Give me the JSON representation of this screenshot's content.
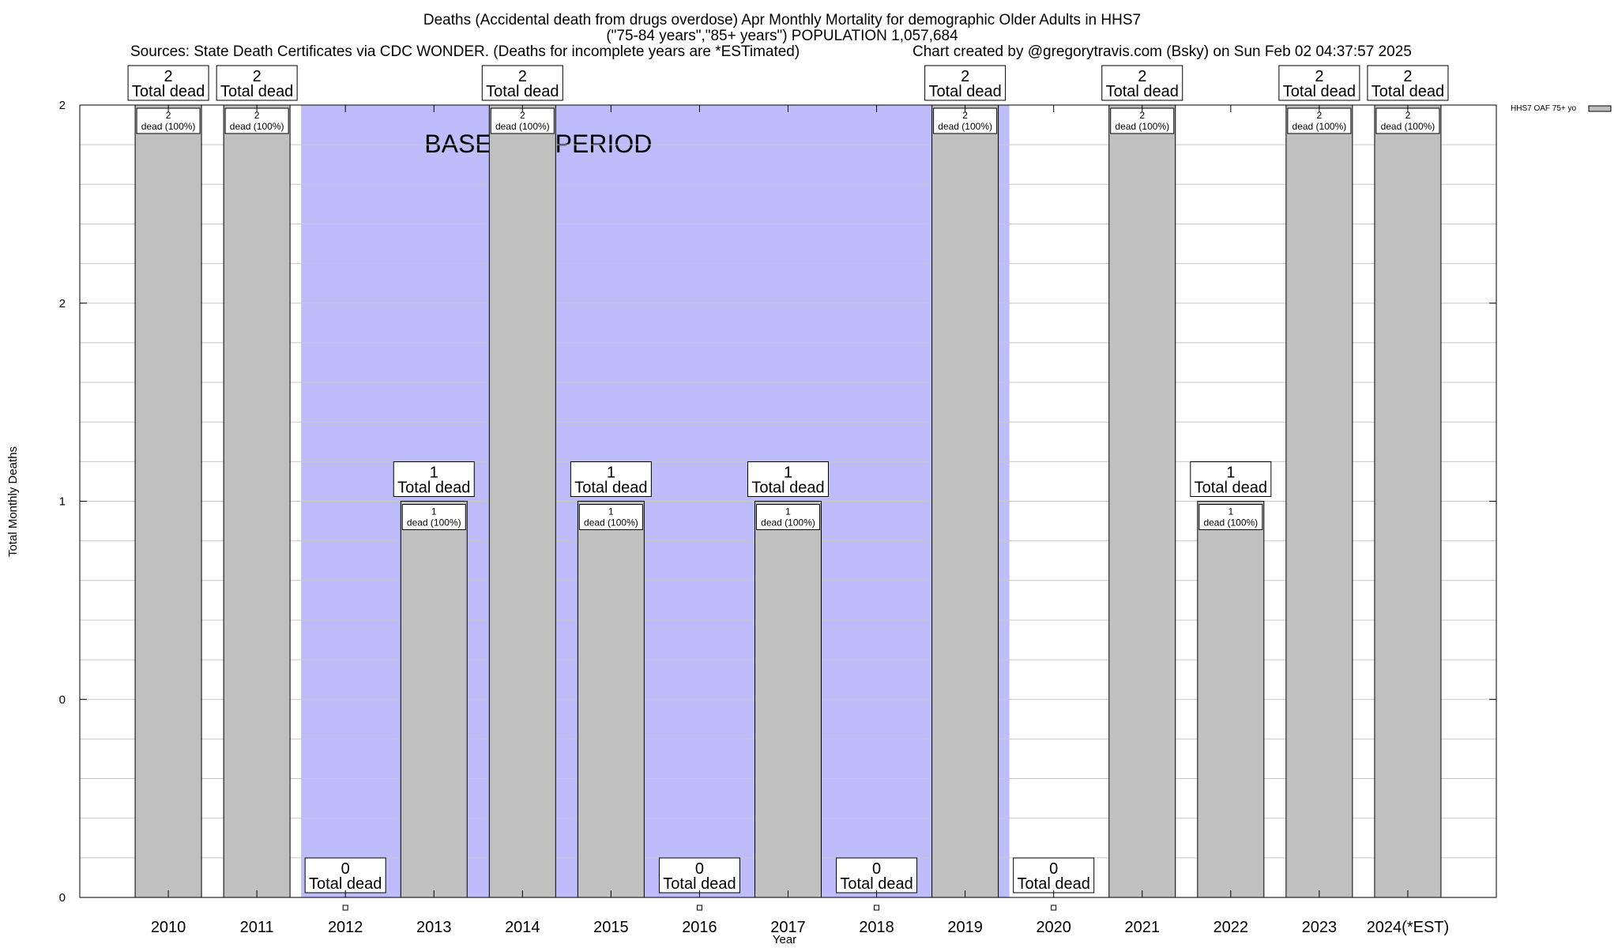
{
  "chart_data": {
    "type": "bar",
    "title_lines": [
      "Deaths (Accidental death from drugs overdose) Apr Monthly Mortality for demographic Older Adults in HHS7",
      "(\"75-84 years\",\"85+ years\") POPULATION 1,057,684"
    ],
    "sources": "Sources: State Death Certificates via CDC WONDER. (Deaths for incomplete years are *ESTimated)",
    "credit": "Chart created by @gregorytravis.com (Bsky) on Sun Feb 02 04:37:57 2025",
    "xlabel": "Year",
    "ylabel": "Total Monthly Deaths",
    "categories": [
      "2010",
      "2011",
      "2012",
      "2013",
      "2014",
      "2015",
      "2016",
      "2017",
      "2018",
      "2019",
      "2020",
      "2021",
      "2022",
      "2023",
      "2024(*EST)"
    ],
    "series": [
      {
        "name": "HHS7 OAF 75+ yo",
        "values": [
          2,
          2,
          0,
          1,
          2,
          1,
          0,
          1,
          0,
          2,
          0,
          2,
          1,
          2,
          2
        ],
        "color": "#c0c0c0"
      }
    ],
    "ylim": [
      0,
      2
    ],
    "yticks": [
      {
        "label": "0",
        "value": 0
      },
      {
        "label": "0",
        "value": 0.5
      },
      {
        "label": "1",
        "value": 1
      },
      {
        "label": "2",
        "value": 1.5
      },
      {
        "label": "2",
        "value": 2
      }
    ],
    "bar_labels_top": [
      "2",
      "2",
      "0",
      "1",
      "2",
      "1",
      "0",
      "1",
      "0",
      "2",
      "0",
      "2",
      "1",
      "2",
      "2"
    ],
    "total_label": "Total dead",
    "inner_labels_top": [
      "2",
      "2",
      "",
      "1",
      "2",
      "1",
      "",
      "1",
      "",
      "2",
      "",
      "2",
      "1",
      "2",
      "2"
    ],
    "inner_label_bottom": "dead (100%)",
    "baseline": {
      "label": "BASELINE PERIOD",
      "start": "2012",
      "end": "2019",
      "color": "#bdbdfb"
    },
    "legend_position": "top-right",
    "grid": true
  }
}
